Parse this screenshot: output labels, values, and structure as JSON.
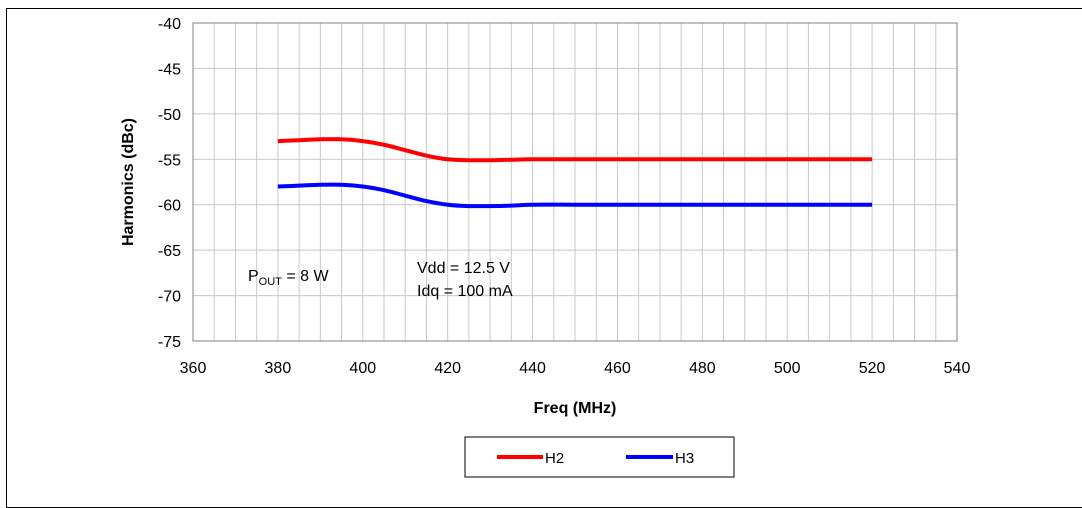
{
  "chart_data": {
    "type": "line",
    "title": "",
    "xlabel": "Freq (MHz)",
    "ylabel": "Harmonics (dBc)",
    "xlim": [
      360,
      540
    ],
    "ylim": [
      -75,
      -40
    ],
    "x_ticks": [
      360,
      380,
      400,
      420,
      440,
      460,
      480,
      500,
      520,
      540
    ],
    "y_ticks": [
      -40,
      -45,
      -50,
      -55,
      -60,
      -65,
      -70,
      -75
    ],
    "grid": true,
    "x_minor_step": 5,
    "series": [
      {
        "name": "H2",
        "color": "#ff0000",
        "x": [
          380,
          385,
          390,
          395,
          400,
          405,
          410,
          415,
          420,
          425,
          430,
          435,
          440,
          450,
          460,
          470,
          480,
          490,
          500,
          510,
          520
        ],
        "y": [
          -53.0,
          -52.9,
          -52.8,
          -52.8,
          -53.0,
          -53.4,
          -54.0,
          -54.6,
          -55.0,
          -55.1,
          -55.1,
          -55.05,
          -55.0,
          -55.0,
          -55.0,
          -55.0,
          -55.0,
          -55.0,
          -55.0,
          -55.0,
          -55.0
        ]
      },
      {
        "name": "H3",
        "color": "#0000ff",
        "x": [
          380,
          385,
          390,
          395,
          400,
          405,
          410,
          415,
          420,
          425,
          430,
          435,
          440,
          450,
          460,
          470,
          480,
          490,
          500,
          510,
          520
        ],
        "y": [
          -58.0,
          -57.9,
          -57.8,
          -57.8,
          -58.0,
          -58.4,
          -59.0,
          -59.6,
          -60.0,
          -60.15,
          -60.15,
          -60.1,
          -60.0,
          -60.0,
          -60.0,
          -60.0,
          -60.0,
          -60.0,
          -60.0,
          -60.0,
          -60.0
        ]
      }
    ],
    "legend_position": "bottom",
    "annotations": {
      "pout_main": "P",
      "pout_sub": "OUT",
      "pout_rest": " = 8 W",
      "vdd": "Vdd = 12.5 V",
      "idq": "Idq = 100 mA"
    }
  }
}
